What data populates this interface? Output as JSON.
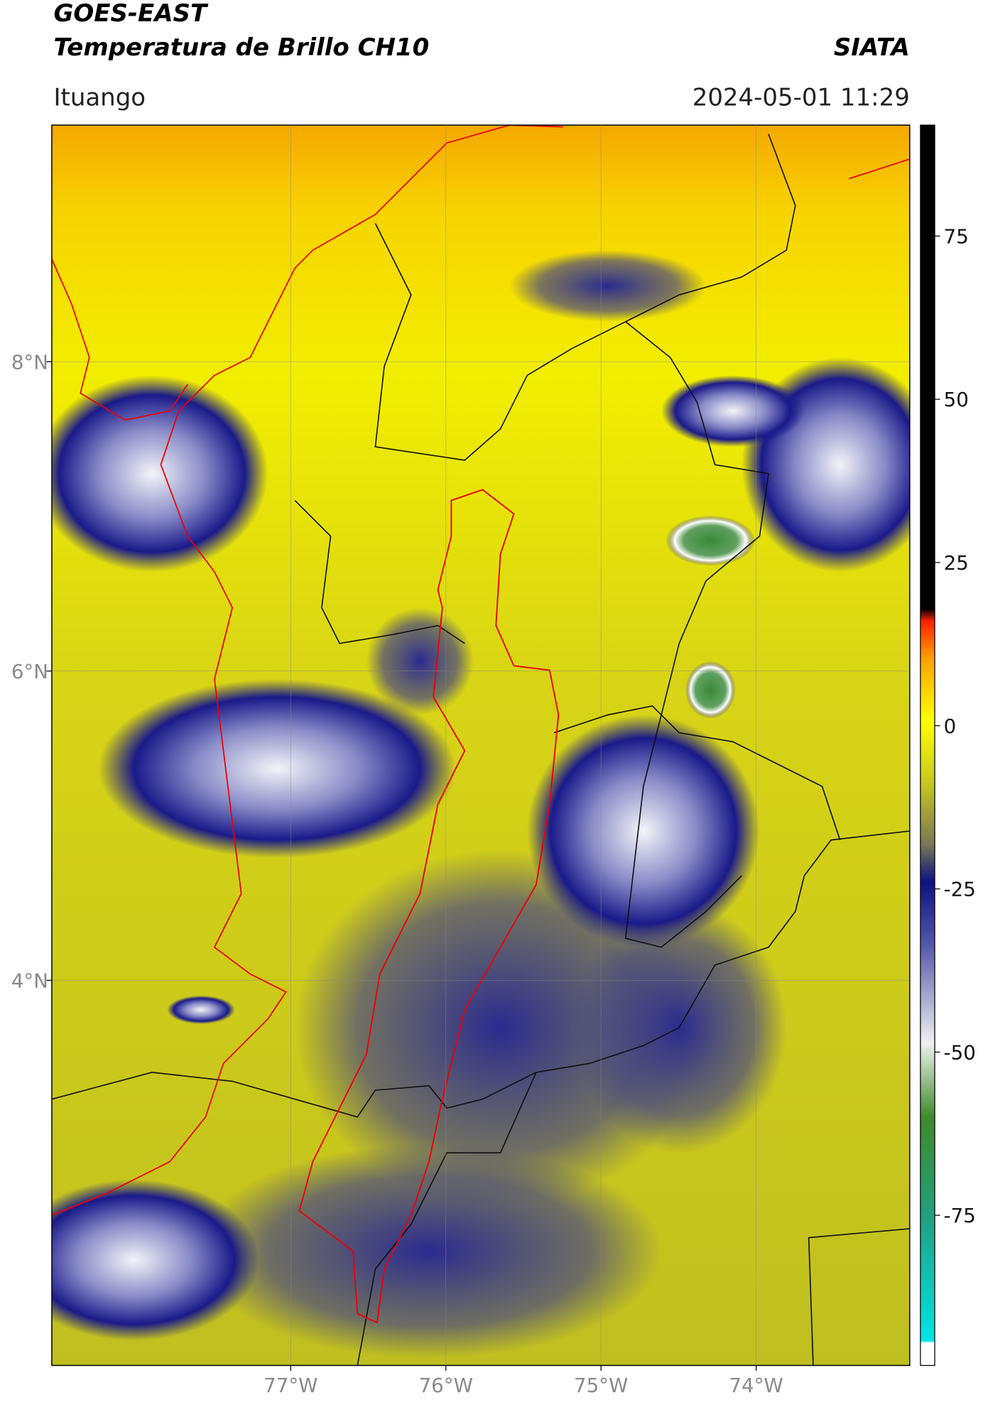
{
  "header": {
    "title": "GOES-EAST",
    "subtitle": "Temperatura de Brillo CH10",
    "source": "SIATA",
    "region": "Ituango",
    "timestamp": "2024-05-01 11:29"
  },
  "map": {
    "type": "map",
    "xlim": [
      -78.54,
      -73.01
    ],
    "ylim": [
      1.51,
      9.53
    ],
    "xticks": [
      {
        "value": -77,
        "label": "77°W"
      },
      {
        "value": -76,
        "label": "76°W"
      },
      {
        "value": -75,
        "label": "75°W"
      },
      {
        "value": -74,
        "label": "74°W"
      }
    ],
    "yticks": [
      {
        "value": 8,
        "label": "8°N"
      },
      {
        "value": 6,
        "label": "6°N"
      },
      {
        "value": 4,
        "label": "4°N"
      }
    ],
    "grid": true
  },
  "colorbar": {
    "lim": [
      -98,
      92
    ],
    "ticks": [
      75,
      50,
      25,
      0,
      -25,
      -50,
      -75
    ]
  }
}
